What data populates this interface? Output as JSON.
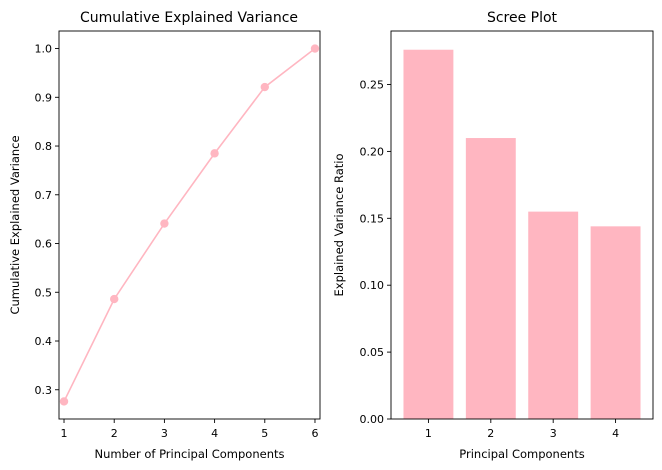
{
  "chart_data": [
    {
      "type": "line",
      "title": "Cumulative Explained Variance",
      "xlabel": "Number of Principal Components",
      "ylabel": "Cumulative Explained Variance",
      "x": [
        1,
        2,
        3,
        4,
        5,
        6
      ],
      "values": [
        0.276,
        0.486,
        0.641,
        0.785,
        0.921,
        1.0
      ],
      "xlim": [
        0.9,
        6.1
      ],
      "ylim": [
        0.24,
        1.036
      ],
      "xticks": [
        1,
        2,
        3,
        4,
        5,
        6
      ],
      "yticks": [
        0.3,
        0.4,
        0.5,
        0.6,
        0.7,
        0.8,
        0.9,
        1.0
      ],
      "ytick_labels": [
        "0.3",
        "0.4",
        "0.5",
        "0.6",
        "0.7",
        "0.8",
        "0.9",
        "1.0"
      ],
      "marker": "circle",
      "color": "#ffb6c1",
      "grid": false,
      "legend": false
    },
    {
      "type": "bar",
      "title": "Scree Plot",
      "xlabel": "Principal Components",
      "ylabel": "Explained Variance Ratio",
      "categories": [
        "1",
        "2",
        "3",
        "4"
      ],
      "values": [
        0.276,
        0.21,
        0.155,
        0.144
      ],
      "xlim": [
        0.4,
        4.6
      ],
      "ylim": [
        0,
        0.29
      ],
      "yticks": [
        0.0,
        0.05,
        0.1,
        0.15,
        0.2,
        0.25
      ],
      "ytick_labels": [
        "0.00",
        "0.05",
        "0.10",
        "0.15",
        "0.20",
        "0.25"
      ],
      "bar_width": 0.8,
      "color": "#ffb6c1",
      "grid": false,
      "legend": false
    }
  ]
}
